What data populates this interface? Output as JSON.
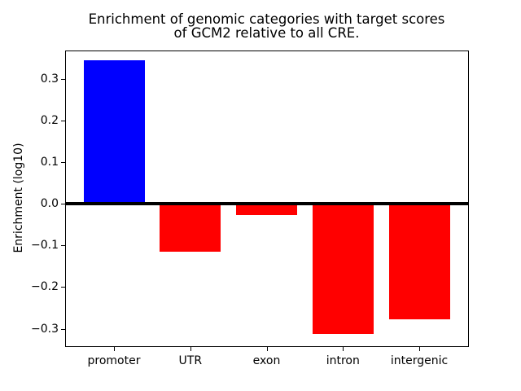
{
  "figure": {
    "background": "#ffffff",
    "text_color": "#000000"
  },
  "chart_data": {
    "type": "bar",
    "title": "Enrichment of genomic categories with target scores\nof GCM2 relative to all CRE.",
    "title_lines": [
      "Enrichment of genomic categories with target scores",
      "of GCM2 relative to all CRE."
    ],
    "xlabel": "",
    "ylabel": "Enrichment (log10)",
    "categories": [
      "promoter",
      "UTR",
      "exon",
      "intron",
      "intergenic"
    ],
    "values": [
      0.345,
      -0.115,
      -0.028,
      -0.312,
      -0.278
    ],
    "bar_colors": [
      "#0000ff",
      "#ff0000",
      "#ff0000",
      "#ff0000",
      "#ff0000"
    ],
    "positive_color": "#0000ff",
    "negative_color": "#ff0000",
    "ylim": [
      -0.342,
      0.368
    ],
    "yticks": [
      0.3,
      0.2,
      0.1,
      0.0,
      -0.1,
      -0.2,
      -0.3
    ],
    "ytick_labels": [
      "0.3",
      "0.2",
      "0.1",
      "0.0",
      "−0.1",
      "−0.2",
      "−0.3"
    ],
    "bar_width_fraction": 0.8,
    "zero_line": true,
    "zero_line_color": "#000000",
    "axis_color": "#000000",
    "grid": false,
    "legend": false
  }
}
